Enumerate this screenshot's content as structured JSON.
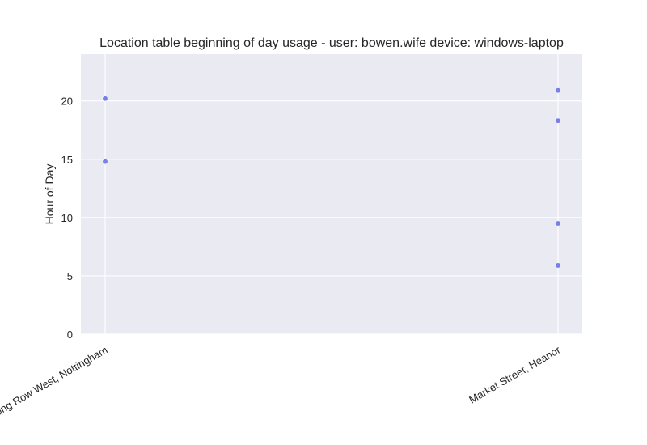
{
  "chart_data": {
    "type": "scatter",
    "title": "Location table beginning of day usage -  user: bowen.wife device: windows-laptop",
    "xlabel": "",
    "ylabel": "Hour of Day",
    "categories": [
      "Long Row West, Nottingham",
      "Market Street, Heanor"
    ],
    "ylim": [
      0,
      24
    ],
    "yticks": [
      0,
      5,
      10,
      15,
      20
    ],
    "grid": true,
    "legend": "none",
    "points": [
      {
        "x": "Long Row West, Nottingham",
        "y": 20.2
      },
      {
        "x": "Long Row West, Nottingham",
        "y": 14.8
      },
      {
        "x": "Market Street, Heanor",
        "y": 20.9
      },
      {
        "x": "Market Street, Heanor",
        "y": 18.3
      },
      {
        "x": "Market Street, Heanor",
        "y": 9.5
      },
      {
        "x": "Market Street, Heanor",
        "y": 5.9
      }
    ],
    "colors": {
      "background": "#eaeaf2",
      "grid": "#ffffff",
      "point": "#6b73e8"
    }
  }
}
